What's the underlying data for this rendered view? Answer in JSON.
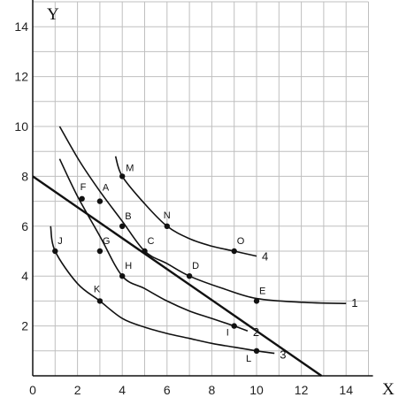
{
  "chart_data": {
    "type": "line",
    "title": "",
    "xlabel": "X",
    "ylabel": "Y",
    "xlim": [
      0,
      15
    ],
    "ylim": [
      0,
      15
    ],
    "grid": true,
    "x_ticks": [
      0,
      2,
      4,
      6,
      8,
      10,
      12,
      14
    ],
    "y_ticks": [
      2,
      4,
      6,
      8,
      10,
      12,
      14
    ],
    "series": [
      {
        "name": "1",
        "kind": "indifference-curve",
        "x": [
          1.2,
          2.1,
          3.0,
          4.0,
          5.0,
          6.0,
          7.0,
          8.5,
          10.0,
          12.0,
          14.0
        ],
        "y": [
          10.0,
          8.6,
          7.4,
          6.2,
          5.0,
          4.5,
          4.0,
          3.5,
          3.1,
          2.95,
          2.9
        ]
      },
      {
        "name": "2",
        "kind": "indifference-curve",
        "x": [
          1.2,
          2.0,
          3.0,
          4.0,
          5.0,
          6.0,
          7.0,
          8.0,
          9.0,
          9.6
        ],
        "y": [
          8.7,
          7.2,
          5.6,
          4.0,
          3.5,
          3.0,
          2.6,
          2.3,
          2.0,
          1.8
        ]
      },
      {
        "name": "3",
        "kind": "indifference-curve",
        "x": [
          0.8,
          1.0,
          2.0,
          3.0,
          4.0,
          5.0,
          6.0,
          7.0,
          8.0,
          9.0,
          10.0,
          10.8
        ],
        "y": [
          6.0,
          5.0,
          3.7,
          3.0,
          2.3,
          1.95,
          1.7,
          1.5,
          1.3,
          1.15,
          1.0,
          0.9
        ]
      },
      {
        "name": "4",
        "kind": "indifference-curve",
        "x": [
          3.7,
          4.0,
          5.0,
          6.0,
          7.0,
          8.0,
          9.0,
          10.0
        ],
        "y": [
          8.8,
          8.0,
          6.9,
          6.0,
          5.5,
          5.2,
          5.0,
          4.8
        ]
      },
      {
        "name": "",
        "kind": "budget-line",
        "x": [
          0.0,
          12.9
        ],
        "y": [
          8.0,
          0.0
        ]
      }
    ],
    "points": [
      {
        "label": "A",
        "x": 3,
        "y": 7
      },
      {
        "label": "B",
        "x": 4,
        "y": 6
      },
      {
        "label": "C",
        "x": 5,
        "y": 5
      },
      {
        "label": "D",
        "x": 7,
        "y": 4
      },
      {
        "label": "E",
        "x": 10,
        "y": 3
      },
      {
        "label": "F",
        "x": 2.2,
        "y": 7.1
      },
      {
        "label": "G",
        "x": 3,
        "y": 5
      },
      {
        "label": "H",
        "x": 4,
        "y": 4
      },
      {
        "label": "I",
        "x": 9,
        "y": 2
      },
      {
        "label": "J",
        "x": 1,
        "y": 5
      },
      {
        "label": "K",
        "x": 3,
        "y": 3
      },
      {
        "label": "L",
        "x": 10,
        "y": 1
      },
      {
        "label": "M",
        "x": 4,
        "y": 8
      },
      {
        "label": "N",
        "x": 6,
        "y": 6
      },
      {
        "label": "O",
        "x": 9,
        "y": 5
      }
    ],
    "colors": {
      "line": "#111111",
      "grid": "#bfbfbf",
      "axis": "#111111"
    }
  }
}
